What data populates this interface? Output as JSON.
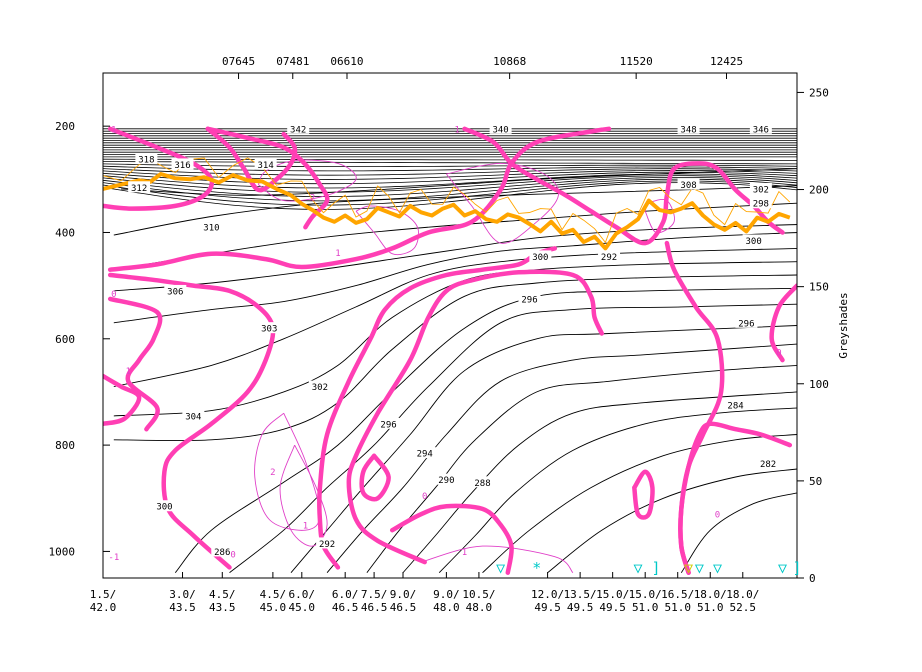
{
  "chart_data": {
    "type": "line",
    "top_station_labels": [
      {
        "text": "07645",
        "x": 3.75
      },
      {
        "text": "07481",
        "x": 5.25
      },
      {
        "text": "06610",
        "x": 6.75
      },
      {
        "text": "10868",
        "x": 11.25
      },
      {
        "text": "11520",
        "x": 14.75
      },
      {
        "text": "12425",
        "x": 17.25
      }
    ],
    "bottom_labels": [
      {
        "line1": "1.5/",
        "line2": "42.0",
        "x": 0
      },
      {
        "line1": "3.0/",
        "line2": "43.5",
        "x": 2.2
      },
      {
        "line1": "4.5/",
        "line2": "43.5",
        "x": 3.3
      },
      {
        "line1": "4.5/",
        "line2": "45.0",
        "x": 4.7
      },
      {
        "line1": "6.0/",
        "line2": "45.0",
        "x": 5.5
      },
      {
        "line1": "6.0/",
        "line2": "46.5",
        "x": 6.7
      },
      {
        "line1": "7.5/",
        "line2": "46.5",
        "x": 7.5
      },
      {
        "line1": "9.0/",
        "line2": "46.5",
        "x": 8.3
      },
      {
        "line1": "9.0/",
        "line2": "48.0",
        "x": 9.5
      },
      {
        "line1": "10.5/",
        "line2": "48.0",
        "x": 10.4
      },
      {
        "line1": "12.0/",
        "line2": "49.5",
        "x": 12.3
      },
      {
        "line1": "13.5/",
        "line2": "49.5",
        "x": 13.2
      },
      {
        "line1": "15.0/",
        "line2": "49.5",
        "x": 14.1
      },
      {
        "line1": "15.0/",
        "line2": "51.0",
        "x": 15.0
      },
      {
        "line1": "16.5/",
        "line2": "51.0",
        "x": 15.9
      },
      {
        "line1": "18.0/",
        "line2": "51.0",
        "x": 16.8
      },
      {
        "line1": "18.0/",
        "line2": "52.5",
        "x": 17.7
      }
    ],
    "left_axis": {
      "ticks": [
        200,
        400,
        600,
        800,
        1000
      ],
      "range": [
        100,
        1050
      ],
      "inverted": true
    },
    "right_axis": {
      "label": "Greyshades",
      "ticks": [
        0,
        50,
        100,
        150,
        200,
        250
      ],
      "range": [
        0,
        260
      ]
    },
    "theta_labels": [
      {
        "text": "342",
        "x": 5.4,
        "p": 205
      },
      {
        "text": "340",
        "x": 11.0,
        "p": 205
      },
      {
        "text": "348",
        "x": 16.2,
        "p": 205
      },
      {
        "text": "346",
        "x": 18.2,
        "p": 205
      },
      {
        "text": "318",
        "x": 1.2,
        "p": 262
      },
      {
        "text": "316",
        "x": 2.2,
        "p": 272
      },
      {
        "text": "314",
        "x": 4.5,
        "p": 272
      },
      {
        "text": "312",
        "x": 1.0,
        "p": 315
      },
      {
        "text": "308",
        "x": 16.2,
        "p": 310
      },
      {
        "text": "302",
        "x": 18.2,
        "p": 318
      },
      {
        "text": "298",
        "x": 18.2,
        "p": 345
      },
      {
        "text": "310",
        "x": 3.0,
        "p": 390
      },
      {
        "text": "300",
        "x": 18.0,
        "p": 415
      },
      {
        "text": "306",
        "x": 2.0,
        "p": 510
      },
      {
        "text": "300",
        "x": 12.1,
        "p": 445
      },
      {
        "text": "296",
        "x": 11.8,
        "p": 525
      },
      {
        "text": "292",
        "x": 14.0,
        "p": 445
      },
      {
        "text": "303",
        "x": 4.6,
        "p": 580
      },
      {
        "text": "296",
        "x": 17.8,
        "p": 570
      },
      {
        "text": "302",
        "x": 6.0,
        "p": 690
      },
      {
        "text": "304",
        "x": 2.5,
        "p": 745
      },
      {
        "text": "296",
        "x": 7.9,
        "p": 760
      },
      {
        "text": "284",
        "x": 17.5,
        "p": 725
      },
      {
        "text": "294",
        "x": 8.9,
        "p": 815
      },
      {
        "text": "290",
        "x": 9.5,
        "p": 865
      },
      {
        "text": "288",
        "x": 10.5,
        "p": 870
      },
      {
        "text": "282",
        "x": 18.4,
        "p": 835
      },
      {
        "text": "300",
        "x": 1.7,
        "p": 915
      },
      {
        "text": "286",
        "x": 3.3,
        "p": 1000
      },
      {
        "text": "292",
        "x": 6.2,
        "p": 985
      }
    ],
    "tropopause_series": {
      "name": "",
      "color": "#ffa500",
      "x": [
        0.0,
        0.5,
        1.0,
        1.3,
        1.6,
        2.0,
        2.4,
        2.8,
        3.2,
        3.6,
        4.0,
        4.4,
        4.8,
        5.2,
        5.5,
        5.8,
        6.1,
        6.4,
        6.7,
        7.0,
        7.3,
        7.6,
        7.9,
        8.2,
        8.5,
        8.8,
        9.1,
        9.4,
        9.7,
        10.0,
        10.3,
        10.6,
        10.9,
        11.2,
        11.5,
        11.8,
        12.1,
        12.4,
        12.7,
        13.0,
        13.3,
        13.6,
        13.9,
        14.2,
        14.5,
        14.8,
        15.1,
        15.4,
        15.7,
        16.0,
        16.3,
        16.6,
        16.9,
        17.2,
        17.5,
        17.8,
        18.1,
        18.4,
        18.7,
        19.0
      ],
      "p": [
        318,
        310,
        302,
        305,
        290,
        298,
        300,
        296,
        306,
        292,
        302,
        304,
        318,
        330,
        346,
        358,
        372,
        380,
        368,
        382,
        375,
        354,
        362,
        370,
        350,
        362,
        368,
        355,
        348,
        368,
        360,
        375,
        380,
        366,
        372,
        384,
        398,
        380,
        402,
        395,
        418,
        408,
        430,
        402,
        390,
        375,
        340,
        358,
        362,
        355,
        345,
        368,
        385,
        395,
        382,
        398,
        372,
        380,
        365,
        372
      ]
    },
    "pv_labels": [
      {
        "text": "1",
        "x": 0.3,
        "p": 205
      },
      {
        "text": "1",
        "x": 9.8,
        "p": 205
      },
      {
        "text": "2",
        "x": 5.8,
        "p": 333
      },
      {
        "text": "0",
        "x": 0.3,
        "p": 515
      },
      {
        "text": "1",
        "x": 6.5,
        "p": 438
      },
      {
        "text": "1",
        "x": 0.7,
        "p": 660
      },
      {
        "text": "0",
        "x": 18.7,
        "p": 625
      },
      {
        "text": "2",
        "x": 4.7,
        "p": 850
      },
      {
        "text": "1",
        "x": 5.6,
        "p": 950
      },
      {
        "text": "0",
        "x": 8.9,
        "p": 895
      },
      {
        "text": "1",
        "x": 10.0,
        "p": 1000
      },
      {
        "text": "0",
        "x": 3.6,
        "p": 1005
      },
      {
        "text": "-1",
        "x": 0.3,
        "p": 1010
      },
      {
        "text": "0",
        "x": 17.0,
        "p": 930
      }
    ],
    "surface_markers": [
      {
        "symbol": "▽",
        "x": 11.0,
        "color": "#00c8c8"
      },
      {
        "symbol": "*",
        "x": 12.0,
        "color": "#00c8c8"
      },
      {
        "symbol": "▽",
        "x": 14.8,
        "color": "#00c8c8"
      },
      {
        "symbol": "]",
        "x": 15.3,
        "color": "#00c8c8"
      },
      {
        "symbol": "▽",
        "x": 16.2,
        "color": "#cccc00"
      },
      {
        "symbol": "▽",
        "x": 16.5,
        "color": "#00c8c8"
      },
      {
        "symbol": "▽",
        "x": 17.0,
        "color": "#00c8c8"
      },
      {
        "symbol": "▽",
        "x": 18.8,
        "color": "#00c8c8"
      },
      {
        "symbol": "]",
        "x": 19.2,
        "color": "#00c8c8"
      }
    ],
    "colors": {
      "theta": "#000000",
      "pv_thick": "#ff3fb4",
      "pv_thin": "#e040c8",
      "tropopause_thin": "#ffa500",
      "marker": "#00c8c8"
    }
  }
}
